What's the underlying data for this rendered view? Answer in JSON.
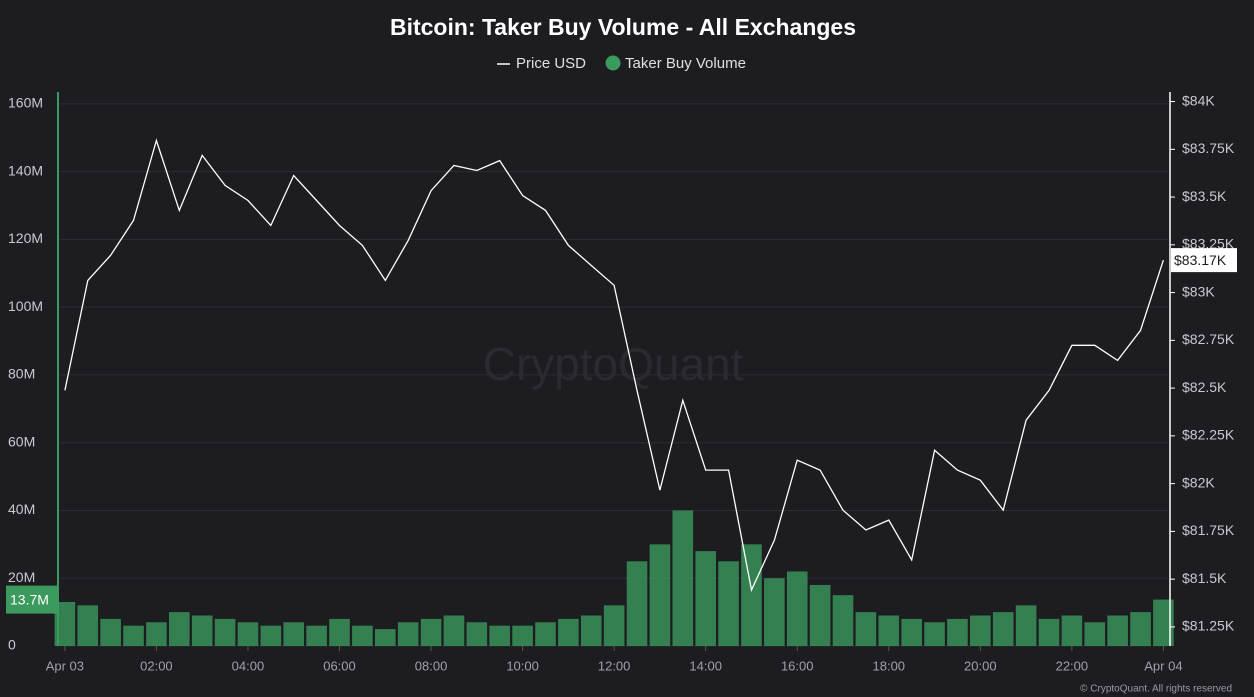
{
  "chart_data": {
    "type": "combo",
    "title": "Bitcoin: Taker Buy Volume - All Exchanges",
    "watermark": "CryptoQuant",
    "footer": "© CryptoQuant. All rights reserved",
    "x": [
      0,
      0.5,
      1,
      1.5,
      2,
      2.5,
      3,
      3.5,
      4,
      4.5,
      5,
      5.5,
      6,
      6.5,
      7,
      7.5,
      8,
      8.5,
      9,
      9.5,
      10,
      10.5,
      11,
      11.5,
      12,
      12.5,
      13,
      13.5,
      14,
      14.5,
      15,
      15.5,
      16,
      16.5,
      17,
      17.5,
      18,
      18.5,
      19,
      19.5,
      20,
      20.5,
      21,
      21.5,
      22,
      22.5,
      23,
      23.5,
      24
    ],
    "xlim": [
      -0.15,
      24.1
    ],
    "xticks": [
      {
        "value": 0,
        "label": "Apr 03"
      },
      {
        "value": 2,
        "label": "02:00"
      },
      {
        "value": 4,
        "label": "04:00"
      },
      {
        "value": 6,
        "label": "06:00"
      },
      {
        "value": 8,
        "label": "08:00"
      },
      {
        "value": 10,
        "label": "10:00"
      },
      {
        "value": 12,
        "label": "12:00"
      },
      {
        "value": 14,
        "label": "14:00"
      },
      {
        "value": 16,
        "label": "16:00"
      },
      {
        "value": 18,
        "label": "18:00"
      },
      {
        "value": 20,
        "label": "20:00"
      },
      {
        "value": 22,
        "label": "22:00"
      },
      {
        "value": 24,
        "label": "Apr 04"
      }
    ],
    "ylim": [
      0,
      163500000
    ],
    "yticks": [
      0,
      {
        "value": 20000000,
        "label": "20M"
      },
      {
        "value": 40000000,
        "label": "40M"
      },
      {
        "value": 60000000,
        "label": "60M"
      },
      {
        "value": 80000000,
        "label": "80M"
      },
      {
        "value": 100000000,
        "label": "100M"
      },
      {
        "value": 120000000,
        "label": "120M"
      },
      {
        "value": 140000000,
        "label": "140M"
      },
      {
        "value": 160000000,
        "label": "160M"
      }
    ],
    "y2lim": [
      81150,
      84050
    ],
    "y2ticks": [
      {
        "value": 81250,
        "label": "$81.25K"
      },
      {
        "value": 81500,
        "label": "$81.5K"
      },
      {
        "value": 81750,
        "label": "$81.75K"
      },
      {
        "value": 82000,
        "label": "$82K"
      },
      {
        "value": 82250,
        "label": "$82.25K"
      },
      {
        "value": 82500,
        "label": "$82.5K"
      },
      {
        "value": 82750,
        "label": "$82.75K"
      },
      {
        "value": 83000,
        "label": "$83K"
      },
      {
        "value": 83250,
        "label": "$83.25K"
      },
      {
        "value": 83500,
        "label": "$83.5K"
      },
      {
        "value": 83750,
        "label": "$83.75K"
      },
      {
        "value": 84000,
        "label": "$84K"
      }
    ],
    "grid": true,
    "series": [
      {
        "name": "Taker Buy Volume",
        "type": "bar",
        "color": "#3b9a5e",
        "values": [
          13000000,
          12000000,
          8000000,
          6000000,
          7000000,
          10000000,
          9000000,
          8000000,
          7000000,
          6000000,
          7000000,
          6000000,
          8000000,
          6000000,
          5000000,
          7000000,
          8000000,
          9000000,
          7000000,
          6000000,
          6000000,
          7000000,
          8000000,
          9000000,
          12000000,
          25000000,
          30000000,
          40000000,
          28000000,
          25000000,
          30000000,
          20000000,
          22000000,
          18000000,
          15000000,
          10000000,
          9000000,
          8000000,
          7000000,
          8000000,
          9000000,
          10000000,
          12000000,
          8000000,
          9000000,
          7000000,
          9000000,
          10000000,
          13700000
        ]
      },
      {
        "name": "Price USD",
        "type": "line",
        "axis": "y2",
        "color": "#ffffff",
        "values": [
          82488,
          83064,
          83195,
          83378,
          83796,
          83430,
          83718,
          83561,
          83482,
          83351,
          83613,
          83482,
          83351,
          83247,
          83064,
          83273,
          83534,
          83665,
          83639,
          83691,
          83508,
          83430,
          83247,
          83142,
          83038,
          82488,
          81966,
          82436,
          82071,
          82071,
          81443,
          81704,
          82123,
          82071,
          81861,
          81757,
          81809,
          81600,
          82175,
          82071,
          82018,
          81861,
          82332,
          82488,
          82724,
          82724,
          82645,
          82802,
          83170
        ]
      }
    ],
    "annotations": [
      {
        "text": "13.7M",
        "value": 13700000,
        "axis": "y"
      },
      {
        "text": "$83.17K",
        "value": 83170,
        "axis": "y2"
      }
    ]
  }
}
